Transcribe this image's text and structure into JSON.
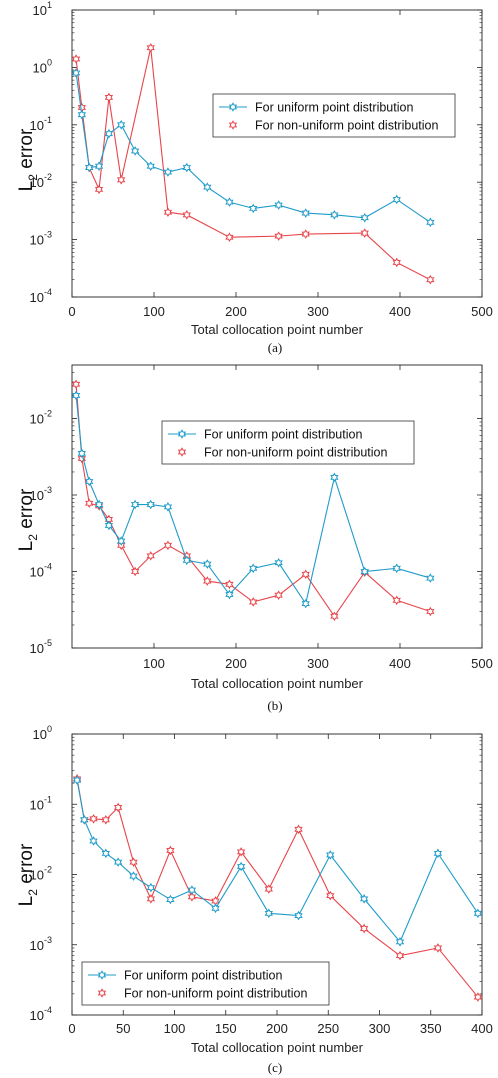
{
  "chart_data": [
    {
      "type": "line",
      "panel_caption": "(a)",
      "xlabel": "Total collocation point number",
      "ylabel_main": "L",
      "ylabel_sub": "2",
      "ylabel_rest": " error",
      "xlim": [
        0,
        500
      ],
      "ylim": [
        0.0001,
        10
      ],
      "yscale": "log",
      "xticks": [
        0,
        100,
        200,
        300,
        400,
        500
      ],
      "yticks_exp": [
        -4,
        -3,
        -2,
        -1,
        0,
        1
      ],
      "legend_position": "top-right",
      "series": [
        {
          "name": "For uniform point distribution",
          "color": "#1f9bc9",
          "x": [
            5,
            12,
            21,
            33,
            45,
            60,
            77,
            96,
            117,
            140,
            165,
            192,
            221,
            252,
            285,
            320,
            357,
            396,
            437
          ],
          "y": [
            0.8,
            0.15,
            0.018,
            0.019,
            0.07,
            0.1,
            0.035,
            0.019,
            0.015,
            0.018,
            0.0082,
            0.0045,
            0.0035,
            0.004,
            0.0029,
            0.0027,
            0.0024,
            0.005,
            0.002
          ]
        },
        {
          "name": "For non-uniform point distribution",
          "color": "#e8454a",
          "x": [
            5,
            12,
            21,
            33,
            45,
            60,
            96,
            117,
            140,
            192,
            252,
            285,
            357,
            396,
            437
          ],
          "y": [
            1.4,
            0.2,
            0.018,
            0.0075,
            0.3,
            0.011,
            2.2,
            0.003,
            0.0027,
            0.0011,
            0.00115,
            0.00125,
            0.0013,
            0.0004,
            0.0002
          ]
        }
      ]
    },
    {
      "type": "line",
      "panel_caption": "(b)",
      "xlabel": "Total collocation point number",
      "ylabel_main": "L",
      "ylabel_sub": "2",
      "ylabel_rest": " error",
      "xlim": [
        0,
        500
      ],
      "ylim": [
        1e-05,
        0.05
      ],
      "yscale": "log",
      "xticks": [
        100,
        200,
        300,
        400,
        500
      ],
      "yticks_exp": [
        -5,
        -4,
        -3,
        -2
      ],
      "legend_position": "top-center",
      "series": [
        {
          "name": "For uniform point distribution",
          "color": "#1f9bc9",
          "x": [
            5,
            12,
            21,
            33,
            45,
            60,
            77,
            96,
            117,
            140,
            165,
            192,
            221,
            252,
            285,
            320,
            357,
            396,
            437
          ],
          "y": [
            0.02,
            0.0035,
            0.0015,
            0.00075,
            0.0004,
            0.00025,
            0.00075,
            0.00075,
            0.0007,
            0.00014,
            0.000125,
            5e-05,
            0.00011,
            0.00013,
            3.8e-05,
            0.0017,
            0.0001,
            0.00011,
            8.2e-05
          ]
        },
        {
          "name": "For non-uniform point distribution",
          "color": "#e8454a",
          "x": [
            5,
            12,
            21,
            33,
            45,
            60,
            77,
            96,
            117,
            140,
            165,
            192,
            221,
            252,
            285,
            320,
            357,
            396,
            437
          ],
          "y": [
            0.028,
            0.003,
            0.00078,
            0.00072,
            0.00048,
            0.00022,
            0.0001,
            0.00016,
            0.00022,
            0.00016,
            7.5e-05,
            6.8e-05,
            4e-05,
            4.9e-05,
            9.2e-05,
            2.6e-05,
            9.8e-05,
            4.2e-05,
            3e-05
          ]
        }
      ]
    },
    {
      "type": "line",
      "panel_caption": "(c)",
      "xlabel": "Total collocation point number",
      "ylabel_main": "L",
      "ylabel_sub": "2",
      "ylabel_rest": " error",
      "xlim": [
        0,
        400
      ],
      "ylim": [
        0.0001,
        1
      ],
      "yscale": "log",
      "xticks": [
        0,
        50,
        100,
        150,
        200,
        250,
        300,
        350,
        400
      ],
      "yticks_exp": [
        -4,
        -3,
        -2,
        -1,
        0
      ],
      "legend_position": "bottom-left",
      "series": [
        {
          "name": "For uniform point distribution",
          "color": "#1f9bc9",
          "x": [
            5,
            12,
            21,
            33,
            45,
            60,
            77,
            96,
            117,
            140,
            165,
            192,
            221,
            252,
            285,
            320,
            357,
            396
          ],
          "y": [
            0.22,
            0.06,
            0.03,
            0.02,
            0.015,
            0.0095,
            0.0065,
            0.0044,
            0.006,
            0.0033,
            0.013,
            0.0028,
            0.0026,
            0.019,
            0.0045,
            0.0011,
            0.02,
            0.0028
          ]
        },
        {
          "name": "For non-uniform point distribution",
          "color": "#e8454a",
          "x": [
            5,
            12,
            21,
            33,
            45,
            60,
            77,
            96,
            117,
            140,
            165,
            192,
            221,
            252,
            285,
            320,
            357,
            396
          ],
          "y": [
            0.23,
            0.06,
            0.062,
            0.06,
            0.09,
            0.015,
            0.0045,
            0.022,
            0.0048,
            0.0042,
            0.021,
            0.0062,
            0.044,
            0.005,
            0.0017,
            0.0007,
            0.0009,
            0.00018
          ]
        }
      ]
    }
  ]
}
